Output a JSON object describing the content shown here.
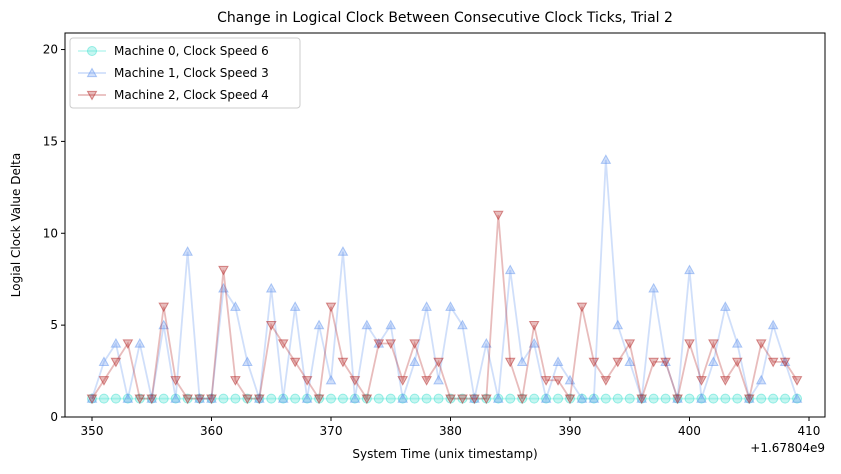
{
  "chart_data": {
    "type": "line",
    "title": "Change in Logical Clock Between Consecutive Clock Ticks, Trial 2",
    "x_label": "System Time (unix timestamp)",
    "y_label": "Logial Clock Value Delta",
    "x_offset_label": "+1.67804e9",
    "x": [
      1678040350,
      1678040351,
      1678040352,
      1678040353,
      1678040354,
      1678040355,
      1678040356,
      1678040357,
      1678040358,
      1678040359,
      1678040360,
      1678040361,
      1678040362,
      1678040363,
      1678040364,
      1678040365,
      1678040366,
      1678040367,
      1678040368,
      1678040369,
      1678040370,
      1678040371,
      1678040372,
      1678040373,
      1678040374,
      1678040375,
      1678040376,
      1678040377,
      1678040378,
      1678040379,
      1678040380,
      1678040381,
      1678040382,
      1678040383,
      1678040384,
      1678040385,
      1678040386,
      1678040387,
      1678040388,
      1678040389,
      1678040390,
      1678040391,
      1678040392,
      1678040393,
      1678040394,
      1678040395,
      1678040396,
      1678040397,
      1678040398,
      1678040399,
      1678040400,
      1678040401,
      1678040402,
      1678040403,
      1678040404,
      1678040405,
      1678040406,
      1678040407,
      1678040408,
      1678040409
    ],
    "series": [
      {
        "name": "Machine 0, Clock Speed 6",
        "color": "#40e0d0",
        "marker": "circle",
        "values": [
          1,
          1,
          1,
          1,
          1,
          1,
          1,
          1,
          1,
          1,
          1,
          1,
          1,
          1,
          1,
          1,
          1,
          1,
          1,
          1,
          1,
          1,
          1,
          1,
          1,
          1,
          1,
          1,
          1,
          1,
          1,
          1,
          1,
          1,
          1,
          1,
          1,
          1,
          1,
          1,
          1,
          1,
          1,
          1,
          1,
          1,
          1,
          1,
          1,
          1,
          1,
          1,
          1,
          1,
          1,
          1,
          1,
          1,
          1,
          1
        ]
      },
      {
        "name": "Machine 1, Clock Speed 3",
        "color": "#6495ed",
        "marker": "triangle-up",
        "values": [
          1,
          3,
          4,
          1,
          4,
          1,
          5,
          1,
          9,
          1,
          1,
          7,
          6,
          3,
          1,
          7,
          1,
          6,
          1,
          5,
          2,
          9,
          1,
          5,
          4,
          5,
          1,
          3,
          6,
          2,
          6,
          5,
          1,
          4,
          1,
          8,
          3,
          4,
          1,
          3,
          2,
          1,
          1,
          14,
          5,
          3,
          1,
          7,
          3,
          1,
          8,
          1,
          3,
          6,
          4,
          1,
          2,
          5,
          3,
          1
        ]
      },
      {
        "name": "Machine 2, Clock Speed 4",
        "color": "#b22222",
        "marker": "triangle-down",
        "values": [
          1,
          2,
          3,
          4,
          1,
          1,
          6,
          2,
          1,
          1,
          1,
          8,
          2,
          1,
          1,
          5,
          4,
          3,
          2,
          1,
          6,
          3,
          2,
          1,
          4,
          4,
          2,
          4,
          2,
          3,
          1,
          1,
          1,
          1,
          11,
          3,
          1,
          5,
          2,
          2,
          1,
          6,
          3,
          2,
          3,
          4,
          1,
          3,
          3,
          1,
          4,
          2,
          4,
          2,
          3,
          1,
          4,
          3,
          3,
          2
        ]
      }
    ],
    "xlim": [
      1678040347.74,
      1678040411.34
    ],
    "xticks": [
      {
        "value": 1678040350,
        "label": "350"
      },
      {
        "value": 1678040360,
        "label": "360"
      },
      {
        "value": 1678040370,
        "label": "370"
      },
      {
        "value": 1678040380,
        "label": "380"
      },
      {
        "value": 1678040390,
        "label": "390"
      },
      {
        "value": 1678040400,
        "label": "400"
      },
      {
        "value": 1678040410,
        "label": "410"
      }
    ],
    "ylim": [
      0,
      20.9
    ],
    "yticks": [
      0,
      5,
      10,
      15,
      20
    ],
    "grid": false,
    "legend": "upper-left"
  }
}
